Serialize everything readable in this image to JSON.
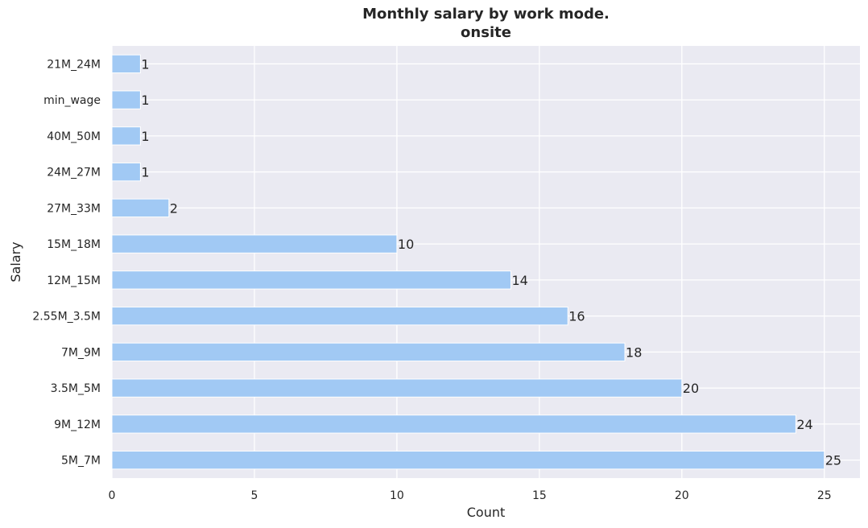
{
  "chart_data": {
    "type": "bar",
    "orientation": "horizontal",
    "title": "Monthly salary by work mode.",
    "subtitle": "onsite",
    "xlabel": "Count",
    "ylabel": "Salary",
    "categories": [
      "5M_7M",
      "9M_12M",
      "3.5M_5M",
      "7M_9M",
      "2.55M_3.5M",
      "12M_15M",
      "15M_18M",
      "27M_33M",
      "24M_27M",
      "40M_50M",
      "min_wage",
      "21M_24M"
    ],
    "values": [
      25,
      24,
      20,
      18,
      16,
      14,
      10,
      2,
      1,
      1,
      1,
      1
    ],
    "data_labels": [
      "25",
      "24",
      "20",
      "18",
      "16",
      "14",
      "10",
      "2",
      "1",
      "1",
      "1",
      "1"
    ],
    "xticks": [
      0,
      5,
      10,
      15,
      20,
      25
    ],
    "xtick_labels": [
      "0",
      "5",
      "10",
      "15",
      "20",
      "25"
    ],
    "xlim": [
      0,
      26.25
    ],
    "grid": true,
    "bar_color": "#a1c9f4",
    "background_color": "#eaeaf2",
    "grid_color": "#ffffff"
  }
}
